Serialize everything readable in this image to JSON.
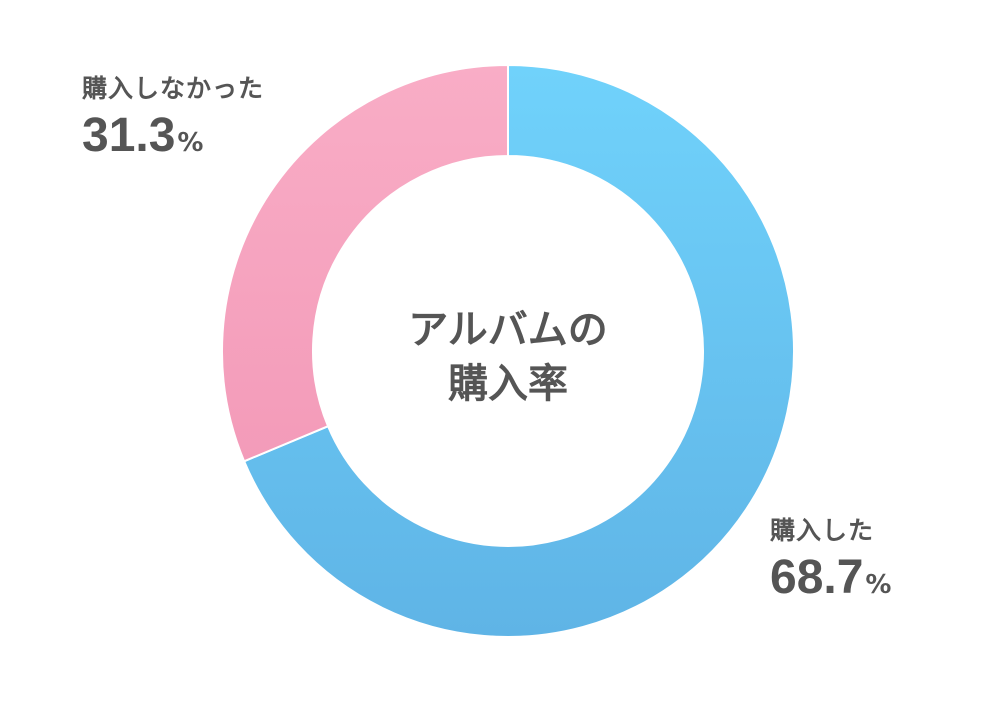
{
  "chart_data": {
    "type": "pie",
    "style": "donut",
    "center_title": [
      "アルバムの",
      "購入率"
    ],
    "slices": [
      {
        "label": "購入した",
        "value": 68.7,
        "unit": "%",
        "color": "#6cc8f7"
      },
      {
        "label": "購入しなかった",
        "value": 31.3,
        "unit": "%",
        "color": "#f6a8c3"
      }
    ]
  }
}
